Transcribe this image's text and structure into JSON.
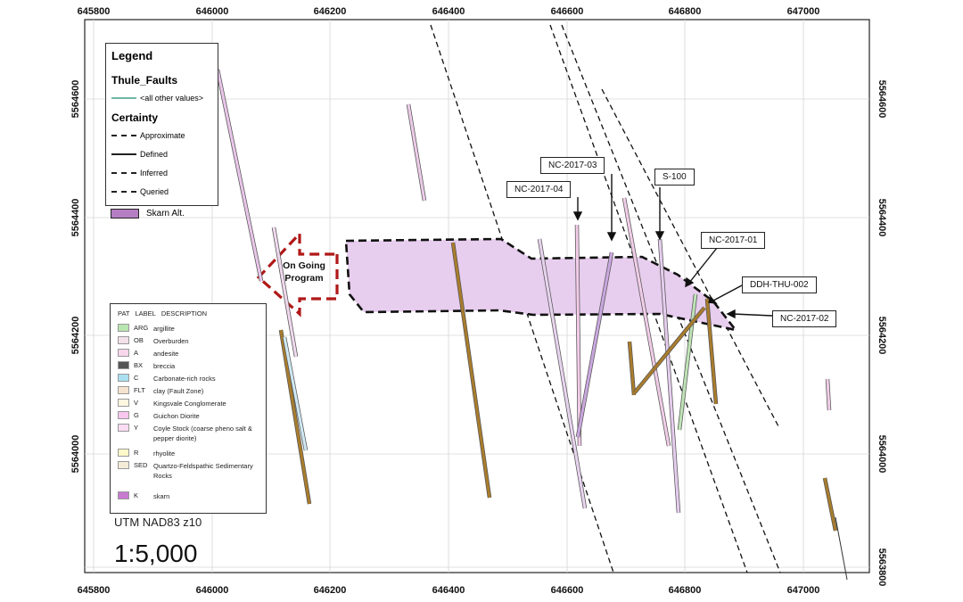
{
  "axes": {
    "top_x_labels": [
      "645800",
      "646000",
      "646200",
      "646400",
      "646600",
      "646800",
      "647000"
    ],
    "bottom_x_labels": [
      "645800",
      "646000",
      "646200",
      "646400",
      "646600",
      "646800",
      "647000"
    ],
    "left_y_labels": [
      "5564600",
      "5564400",
      "5564200",
      "5564000"
    ],
    "right_y_labels": [
      "5564600",
      "5564400",
      "5564200",
      "5564000",
      "5563800"
    ]
  },
  "legend": {
    "title": "Legend",
    "faults_heading": "Thule_Faults",
    "faults_item": "<all other values>",
    "certainty_heading": "Certainty",
    "certainty_items": [
      "Approximate",
      "Defined",
      "Inferred",
      "Queried"
    ],
    "skarn_label": "Skarn Alt."
  },
  "lithology": {
    "headers": [
      "PAT",
      "LABEL",
      "DESCRIPTION"
    ],
    "rows": [
      {
        "code": "ARG",
        "desc": "argillite",
        "color": "#b9e6b0"
      },
      {
        "code": "OB",
        "desc": "Overburden",
        "color": "#f3e0e8"
      },
      {
        "code": "A",
        "desc": "andesite",
        "color": "#f8d7ec"
      },
      {
        "code": "BX",
        "desc": "breccia",
        "color": "#555555"
      },
      {
        "code": "C",
        "desc": "Carbonate-rich rocks",
        "color": "#a9dff0"
      },
      {
        "code": "FLT",
        "desc": "clay (Fault Zone)",
        "color": "#f6e3cf"
      },
      {
        "code": "V",
        "desc": "Kingsvale Conglomerate",
        "color": "#fff6e0"
      },
      {
        "code": "G",
        "desc": "Guichon Diorite",
        "color": "#f7c7ef"
      },
      {
        "code": "Y",
        "desc": "Coyle Stock (coarse pheno salt & pepper diorite)",
        "color": "#f9dcf2"
      },
      {
        "code": "R",
        "desc": "rhyolite",
        "color": "#fff9c9"
      },
      {
        "code": "SED",
        "desc": "Quartzo-Feldspathic Sedimentary Rocks",
        "color": "#f4ecd8"
      },
      {
        "code": "K",
        "desc": "skarn",
        "color": "#c77ad0"
      }
    ]
  },
  "projection": "UTM NAD83 z10",
  "scale": "1:5,000",
  "program_label": "On Going Program",
  "callouts": [
    "NC-2017-03",
    "NC-2017-04",
    "S-100",
    "NC-2017-01",
    "DDH-THU-002",
    "NC-2017-02"
  ],
  "colors": {
    "skarn_zone": "#e7cdee",
    "skarn_alt": "#b57ec2",
    "program_arrow": "#b01818",
    "drillhole_core": "#a97c2c",
    "fault_line": "#111111"
  }
}
